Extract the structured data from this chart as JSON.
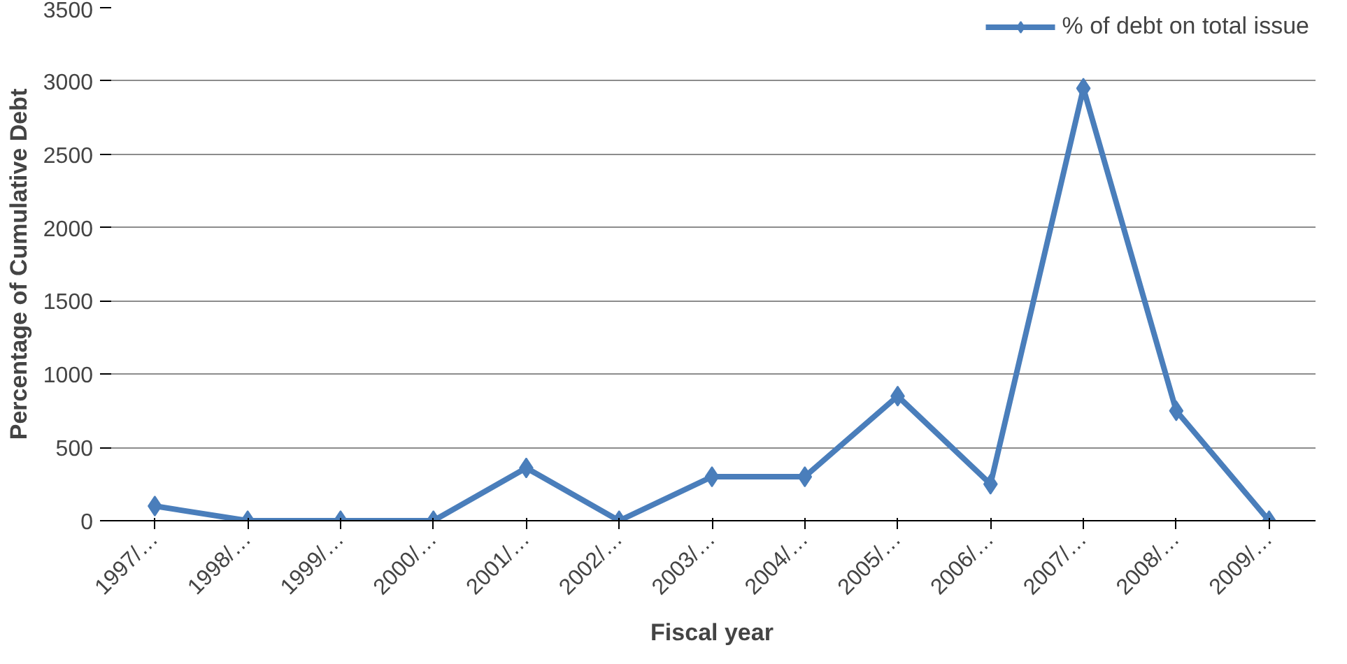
{
  "chart_data": {
    "type": "line",
    "xlabel": "Fiscal year",
    "ylabel": "Percentage of Cumulative Debt",
    "categories": [
      "1997/…",
      "1998/…",
      "1999/…",
      "2000/…",
      "2001/…",
      "2002/…",
      "2003/…",
      "2004/…",
      "2005/…",
      "2006/…",
      "2007/…",
      "2008/…",
      "2009/…"
    ],
    "series": [
      {
        "name": "% of debt on total issue",
        "color": "#4a7ebb",
        "values": [
          100,
          0,
          0,
          0,
          360,
          0,
          300,
          300,
          850,
          250,
          2950,
          750,
          0
        ]
      }
    ],
    "ylim": [
      0,
      3500
    ],
    "yticks": [
      0,
      500,
      1000,
      1500,
      2000,
      2500,
      3000,
      3500
    ],
    "grid": "y",
    "legend": "top right",
    "marker": "diamond",
    "line_style": "solid"
  }
}
